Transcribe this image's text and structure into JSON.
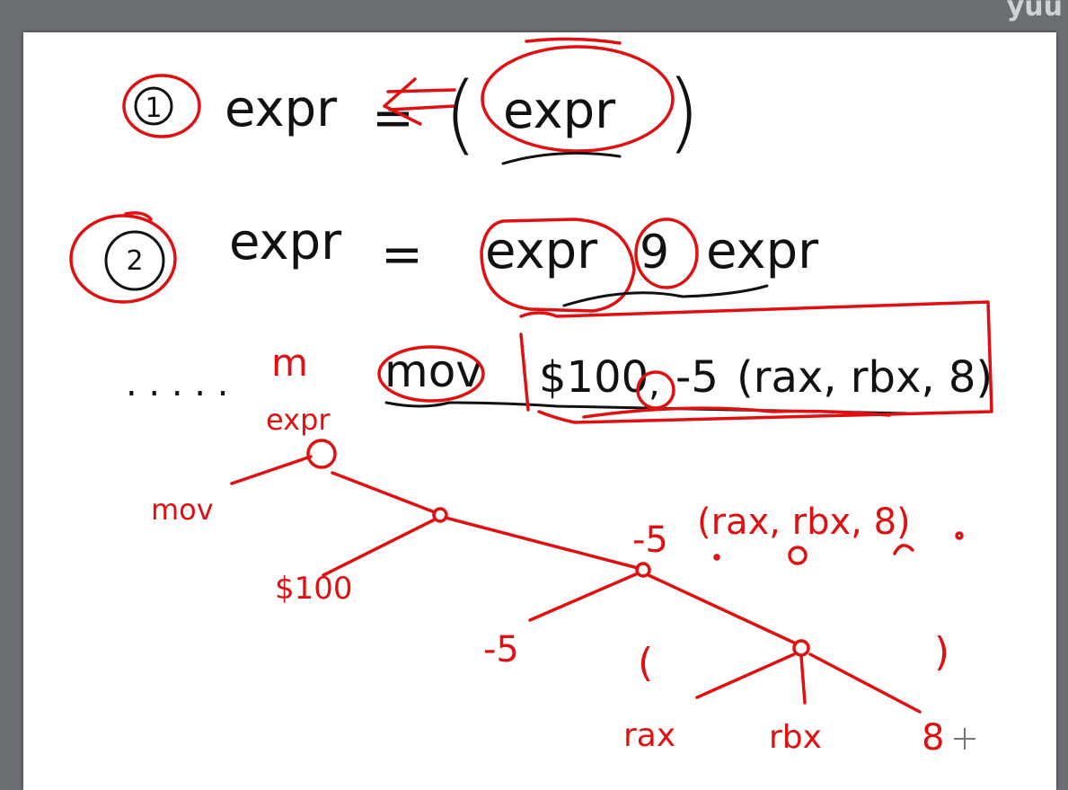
{
  "watermark": "yuu",
  "rule1": {
    "num": "1",
    "lhs": "expr",
    "eq": "=",
    "open_paren": "(",
    "inner": "expr",
    "close_paren": ")"
  },
  "rule2": {
    "num": "2",
    "lhs": "expr",
    "eq": "=",
    "left": "expr",
    "op": "9",
    "right": "expr"
  },
  "instruction": {
    "dots": ". . . . .",
    "m": "m",
    "mnemonic": "mov",
    "src": "$100",
    "comma": ",",
    "dst_disp": "-5",
    "dst_mem": "(rax, rbx, 8)"
  },
  "tree": {
    "root_label": "expr",
    "leaf_mov": "mov",
    "leaf_100": "$100",
    "mem_label_disp": "-5",
    "mem_label_rest": "(rax, rbx, 8)",
    "leaf_disp": "-5",
    "open_paren": "(",
    "close_paren": ")",
    "leaf_rax": "rax",
    "leaf_rbx": "rbx",
    "leaf_8": "8"
  },
  "colors": {
    "ink_black": "#111111",
    "ink_red": "#e01010",
    "board": "#ffffff",
    "frame": "#6b6e73"
  }
}
